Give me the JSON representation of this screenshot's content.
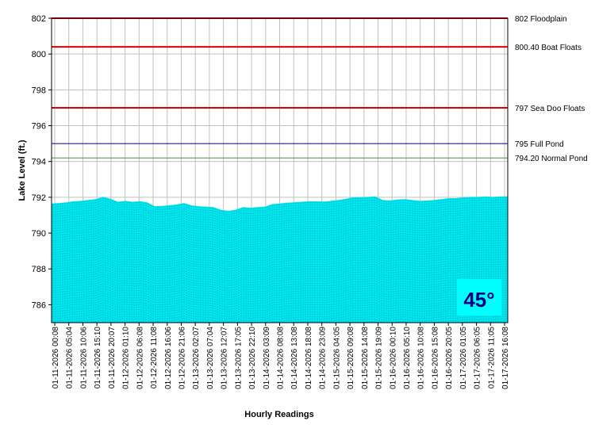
{
  "chart_data": {
    "type": "area",
    "title": "",
    "xlabel": "Hourly Readings",
    "ylabel": "Lake Level (ft.)",
    "ylim": [
      785,
      802
    ],
    "y_ticks": [
      786,
      788,
      790,
      792,
      794,
      796,
      798,
      800,
      802
    ],
    "grid": true,
    "legend": "none",
    "x_tick_labels": [
      "01-11-2026 00:08",
      "01-11-2026 05:04",
      "01-11-2026 10:06",
      "01-11-2026 15:10",
      "01-11-2026 20:07",
      "01-12-2026 01:10",
      "01-12-2026 06:08",
      "01-12-2026 11:08",
      "01-12-2026 16:06",
      "01-12-2026 21:06",
      "01-13-2026 02:07",
      "01-13-2026 07:04",
      "01-13-2026 12:07",
      "01-13-2026 17:05",
      "01-13-2026 22:10",
      "01-14-2026 03:09",
      "01-14-2026 08:08",
      "01-14-2026 13:08",
      "01-14-2026 18:08",
      "01-14-2026 23:09",
      "01-15-2026 04:05",
      "01-15-2026 09:08",
      "01-15-2026 14:08",
      "01-15-2026 19:09",
      "01-16-2026 00:10",
      "01-16-2026 05:10",
      "01-16-2026 10:08",
      "01-16-2026 15:08",
      "01-16-2026 20:05",
      "01-17-2026 01:05",
      "01-17-2026 06:05",
      "01-17-2026 11:05",
      "01-17-2026 16:08"
    ],
    "series": [
      {
        "values": [
          791.65,
          791.68,
          791.72,
          791.78,
          791.8,
          791.85,
          791.9,
          792.02,
          791.92,
          791.75,
          791.8,
          791.75,
          791.78,
          791.72,
          791.5,
          791.52,
          791.55,
          791.6,
          791.68,
          791.55,
          791.5,
          791.48,
          791.45,
          791.3,
          791.25,
          791.3,
          791.45,
          791.42,
          791.45,
          791.48,
          791.62,
          791.65,
          791.7,
          791.72,
          791.75,
          791.78,
          791.78,
          791.76,
          791.8,
          791.85,
          791.92,
          792.0,
          792.0,
          792.02,
          792.05,
          791.85,
          791.82,
          791.88,
          791.9,
          791.85,
          791.8,
          791.82,
          791.85,
          791.9,
          791.95,
          791.95,
          792.0,
          792.02,
          792.02,
          792.05,
          792.02,
          792.05,
          792.05
        ],
        "color": "#00e5ee"
      }
    ],
    "reference_lines": [
      {
        "value": 802,
        "label": "802 Floodplain",
        "color": "#dd0000"
      },
      {
        "value": 800.4,
        "label": "800.40 Boat Floats",
        "color": "#dd0000"
      },
      {
        "value": 797,
        "label": "797 Sea Doo Floats",
        "color": "#dd0000"
      },
      {
        "value": 795,
        "label": "795 Full Pond",
        "color": "#000080"
      },
      {
        "value": 794.2,
        "label": "794.20 Normal Pond",
        "color": "#3a9a3a"
      }
    ],
    "badge": {
      "text": "45°",
      "background": "#00ffff",
      "text_color": "#000080"
    }
  }
}
